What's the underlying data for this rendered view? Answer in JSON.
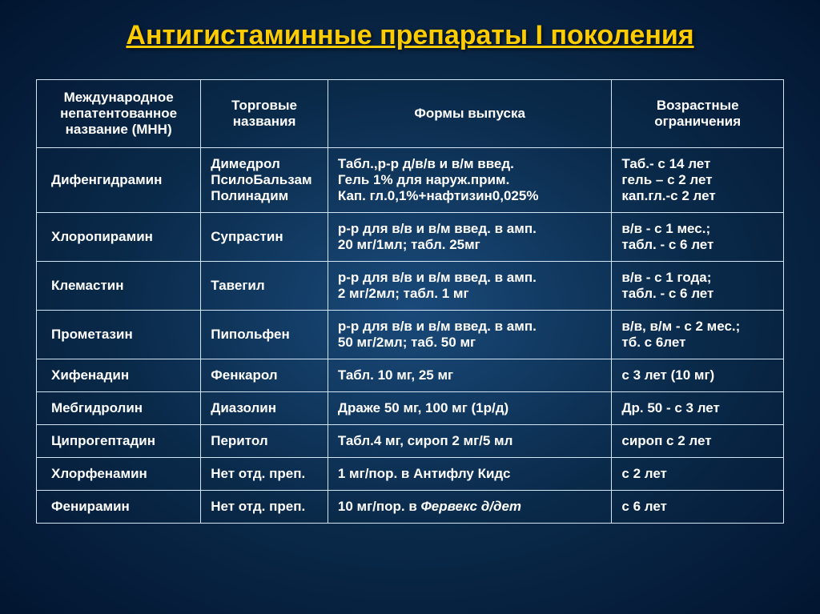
{
  "title": "Антигистаминные препараты I поколения",
  "table": {
    "background_color": "transparent",
    "border_color": "#d4e6f5",
    "text_color": "#ffffff",
    "header_fontsize": 17,
    "cell_fontsize": 17,
    "columns": [
      {
        "label": "Международное непатентованное название (МНН)",
        "width": "22%"
      },
      {
        "label": "Торговые названия",
        "width": "17%"
      },
      {
        "label": "Формы выпуска",
        "width": "38%"
      },
      {
        "label": "Возрастные ограничения",
        "width": "23%"
      }
    ],
    "rows": [
      {
        "mnn": "Дифенгидрамин",
        "trade": "Димедрол\nПсилоБальзам\nПолинадим",
        "form": "Табл.,р-р д/в/в и в/м введ.\nГель 1% для наруж.прим.\nКап. гл.0,1%+нафтизин0,025%",
        "age": "Таб.- с 14 лет\nгель – с 2 лет\nкап.гл.-с 2 лет"
      },
      {
        "mnn": "Хлоропирамин",
        "trade": "Супрастин",
        "form": "р-р для в/в и в/м введ. в амп.\n20 мг/1мл; табл. 25мг",
        "age": "в/в - с 1  мес.;\nтабл. - с 6 лет"
      },
      {
        "mnn": "Клемастин",
        "trade": "Тавегил",
        "form": "р-р для в/в и в/м введ. в амп.\n2 мг/2мл;  табл. 1 мг",
        "age": "в/в - с 1 года;\nтабл. - с 6 лет"
      },
      {
        "mnn": "Прометазин",
        "trade": "Пипольфен",
        "form": "р-р для в/в и в/м введ. в амп.\n50 мг/2мл; таб. 50 мг",
        "age": "в/в, в/м - с 2 мес.;\nтб. с 6лет"
      },
      {
        "mnn": "Хифенадин",
        "trade": "Фенкарол",
        "form": "Табл. 10 мг, 25 мг",
        "age": "с 3 лет (10 мг)"
      },
      {
        "mnn": "Мебгидролин",
        "trade": "Диазолин",
        "form": "Драже 50 мг, 100 мг (1р/д)",
        "age": "Др. 50 - с 3 лет"
      },
      {
        "mnn": "Ципрогептадин",
        "trade": "Перитол",
        "form": "Табл.4 мг, сироп 2 мг/5 мл",
        "age": "сироп с 2 лет"
      },
      {
        "mnn": "Хлорфенамин",
        "trade": "Нет отд. преп.",
        "form": "1 мг/пор. в Антифлу Кидс",
        "age": "с 2 лет"
      },
      {
        "mnn": "Фенирамин",
        "trade": "Нет отд. преп.",
        "form_prefix": "10 мг/пор. в ",
        "form_italic": "Фервекс д/дет",
        "age": "с 6 лет"
      }
    ]
  },
  "title_style": {
    "color": "#ffcc00",
    "fontsize": 34,
    "underline": true
  },
  "page_background": {
    "gradient": "radial",
    "center_color": "#1a4a7a",
    "mid_color": "#0a2a4a",
    "edge_color": "#021530"
  }
}
